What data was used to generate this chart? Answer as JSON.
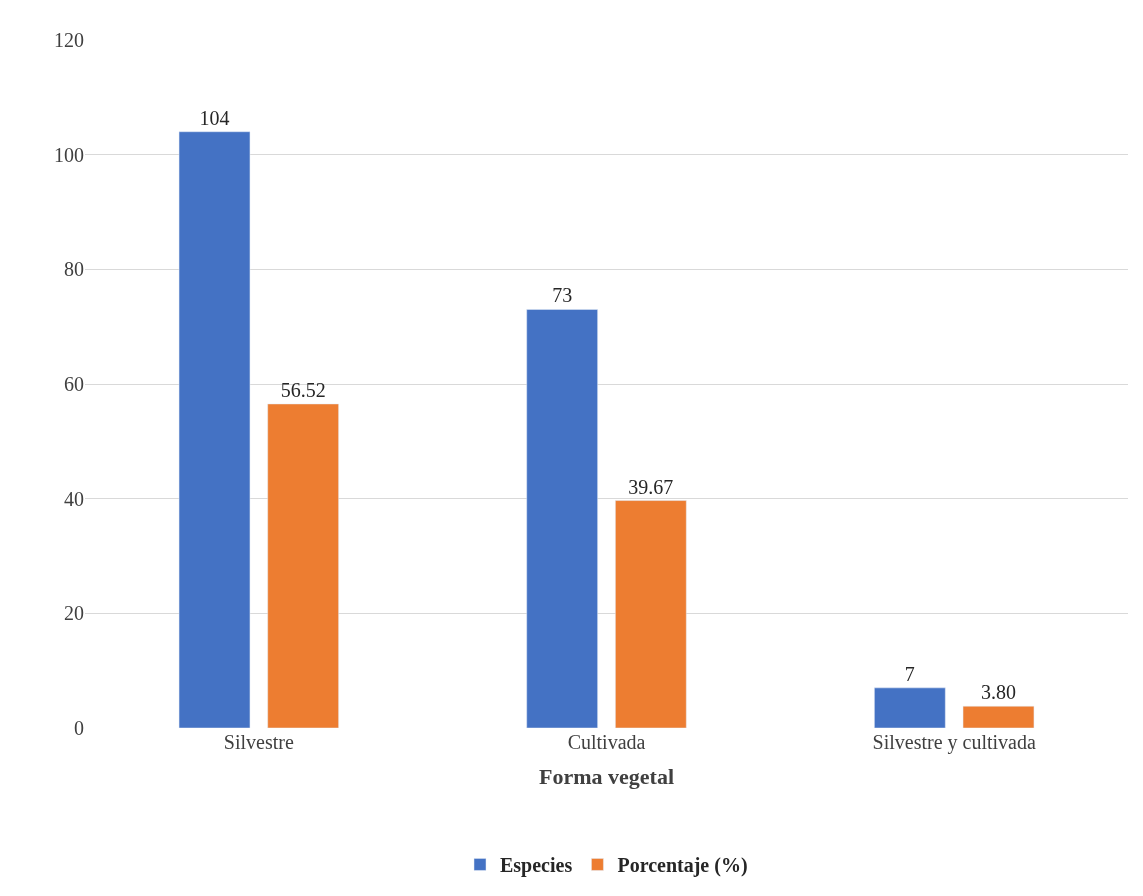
{
  "chart_data": {
    "type": "bar",
    "xlabel": "Forma vegetal",
    "categories": [
      "Silvestre",
      "Cultivada",
      "Silvestre y cultivada"
    ],
    "series": [
      {
        "name": "Especies",
        "color": "#4472c4",
        "values": [
          104,
          73,
          7
        ],
        "value_labels": [
          "104",
          "73",
          "7"
        ]
      },
      {
        "name": "Porcentaje (%)",
        "color": "#ed7d31",
        "values": [
          56.52,
          39.67,
          3.8
        ],
        "value_labels": [
          "56.52",
          "39.67",
          "3.80"
        ]
      }
    ],
    "ylim": [
      0,
      120
    ],
    "yticks": [
      0,
      20,
      40,
      60,
      80,
      100,
      120
    ],
    "grid": "y",
    "legend": "bottom"
  }
}
